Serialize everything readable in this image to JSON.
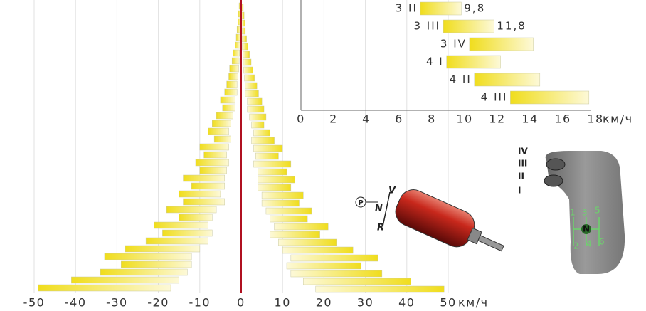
{
  "chart_data": [
    {
      "type": "butterfly_bar",
      "left": [
        [
          -0.5,
          0
        ],
        [
          -0.7,
          0
        ],
        [
          -0.8,
          -0.1
        ],
        [
          -1,
          -0.2
        ],
        [
          -1.2,
          -0.2
        ],
        [
          -1.5,
          -0.3
        ],
        [
          -2,
          -0.4
        ],
        [
          -2.2,
          -0.5
        ],
        [
          -2.8,
          -0.6
        ],
        [
          -3,
          -0.8
        ],
        [
          -3.5,
          -1
        ],
        [
          -4,
          -1
        ],
        [
          -5,
          -1.5
        ],
        [
          -4.5,
          -1.5
        ],
        [
          -6,
          -2
        ],
        [
          -7,
          -2.5
        ],
        [
          -8,
          -3
        ],
        [
          -6.5,
          -2.5
        ],
        [
          -10,
          -3
        ],
        [
          -9,
          -3.5
        ],
        [
          -11,
          -3
        ],
        [
          -10,
          -3.5
        ],
        [
          -14,
          -4
        ],
        [
          -12,
          -4
        ],
        [
          -15,
          -5
        ],
        [
          -14,
          -4
        ],
        [
          -18,
          -6
        ],
        [
          -15,
          -7
        ],
        [
          -21,
          -8
        ],
        [
          -19,
          -7
        ],
        [
          -23,
          -8
        ],
        [
          -28,
          -10
        ],
        [
          -33,
          -12
        ],
        [
          -29,
          -12
        ],
        [
          -34,
          -13
        ],
        [
          -41,
          -15
        ],
        [
          -49,
          -17
        ]
      ],
      "right": [
        [
          0,
          0.5
        ],
        [
          0,
          0.7
        ],
        [
          0.1,
          0.9
        ],
        [
          0.2,
          1
        ],
        [
          0.2,
          1.3
        ],
        [
          0.3,
          1.6
        ],
        [
          0.4,
          2
        ],
        [
          0.5,
          2.4
        ],
        [
          0.6,
          2.8
        ],
        [
          0.8,
          3.2
        ],
        [
          1,
          3.8
        ],
        [
          1,
          4.2
        ],
        [
          1.5,
          5
        ],
        [
          1.5,
          5.5
        ],
        [
          2,
          6
        ],
        [
          2.5,
          5.5
        ],
        [
          3,
          7
        ],
        [
          2.5,
          8
        ],
        [
          3,
          10
        ],
        [
          3.5,
          9
        ],
        [
          3,
          12
        ],
        [
          4,
          11
        ],
        [
          4,
          13
        ],
        [
          4,
          12
        ],
        [
          5,
          15
        ],
        [
          5,
          14
        ],
        [
          6,
          17
        ],
        [
          7,
          16
        ],
        [
          8,
          21
        ],
        [
          7,
          19
        ],
        [
          9,
          23
        ],
        [
          10,
          27
        ],
        [
          12,
          33
        ],
        [
          11,
          29
        ],
        [
          12,
          34
        ],
        [
          15,
          41
        ],
        [
          18,
          49
        ]
      ],
      "color": "#f0dd1c",
      "xlim": [
        -50,
        50
      ],
      "xticks": [
        -50,
        -40,
        -30,
        -20,
        -10,
        0,
        10,
        20,
        30,
        40,
        50
      ],
      "x_unit": "км/ч",
      "grid": true
    },
    {
      "type": "floating_bar",
      "categories": [
        "3 II",
        "3 III",
        "3 IV",
        "4 I",
        "4 II",
        "4 III"
      ],
      "values": [
        [
          7.3,
          9.8
        ],
        [
          8.7,
          11.8
        ],
        [
          10.3,
          14.2
        ],
        [
          8.9,
          12.2
        ],
        [
          10.6,
          14.6
        ],
        [
          12.8,
          17.6
        ]
      ],
      "value_labels": [
        "9,8",
        "11,8",
        null,
        null,
        null,
        null
      ],
      "color": "#f0dd1c",
      "xlim": [
        0,
        18
      ],
      "xticks": [
        0,
        2,
        4,
        6,
        8,
        10,
        12,
        14,
        16,
        18
      ],
      "x_unit": "км/ч"
    }
  ],
  "illustrations": {
    "gear_labels": [
      "IV",
      "III",
      "II",
      "I"
    ],
    "knob_labels": [
      "1",
      "3",
      "5",
      "N",
      "2",
      "4",
      "6"
    ],
    "actuator_labels": [
      "P",
      "N",
      "V",
      "R"
    ]
  }
}
